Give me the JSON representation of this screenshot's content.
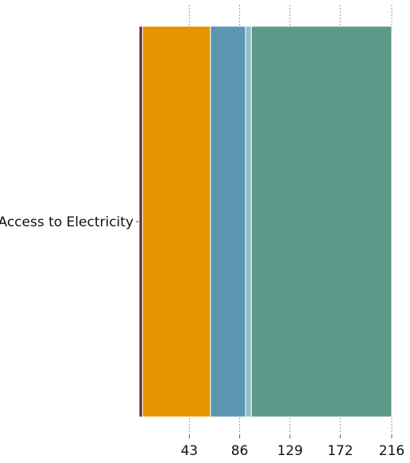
{
  "chart_data": {
    "type": "bar",
    "orientation": "horizontal",
    "stacked": true,
    "categories": [
      "Access to Electricity"
    ],
    "series": [
      {
        "values": [
          3
        ],
        "color": "#6b2e2e"
      },
      {
        "values": [
          58
        ],
        "color": "#e59400"
      },
      {
        "values": [
          30
        ],
        "color": "#5b97b1"
      },
      {
        "values": [
          5
        ],
        "color": "#8dbfce"
      },
      {
        "values": [
          120
        ],
        "color": "#5d9988"
      }
    ],
    "xlim": [
      0,
      216
    ],
    "xticks": [
      43,
      86,
      129,
      172,
      216
    ],
    "tick_labels": [
      "43",
      "86",
      "129",
      "172",
      "216"
    ],
    "grid": "vertical dotted",
    "title": "",
    "xlabel": "",
    "ylabel": ""
  }
}
